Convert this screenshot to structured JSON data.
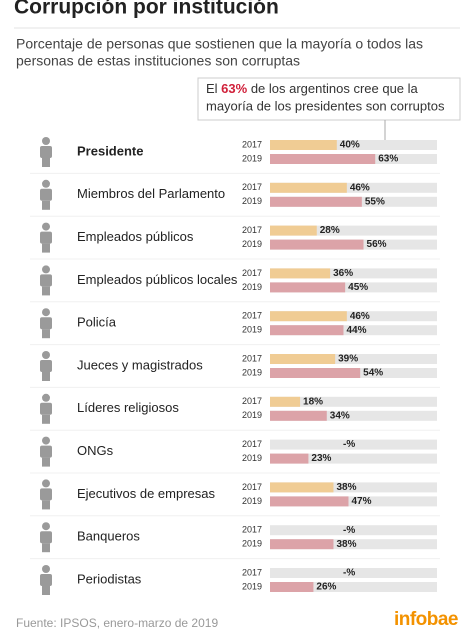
{
  "chart_data": {
    "type": "bar",
    "orientation": "horizontal",
    "title": "Corrupción por institución",
    "subtitle": [
      "Porcentaje de personas que sostienen que la mayoría o todos las",
      "personas de estas instituciones son corruptas"
    ],
    "annotation_lines": [
      [
        "El ",
        "63%",
        " de los argentinos cree que la"
      ],
      [
        "mayoría de los presidentes son corruptos"
      ]
    ],
    "categories": [
      "Presidente",
      "Miembros del Parlamento",
      "Empleados públicos",
      "Empleados públicos locales",
      "Policía",
      "Jueces y magistrados",
      "Líderes religiosos",
      "ONGs",
      "Ejecutivos de empresas",
      "Banqueros",
      "Periodistas"
    ],
    "series": [
      {
        "name": "2017",
        "color": "#f0cc94",
        "values": [
          40,
          46,
          28,
          36,
          46,
          39,
          18,
          null,
          38,
          null,
          null
        ],
        "value_labels": [
          "40%",
          "46%",
          "28%",
          "36%",
          "46%",
          "39%",
          "18%",
          "-%",
          "38%",
          "-%",
          "-%"
        ]
      },
      {
        "name": "2019",
        "color": "#dca3a8",
        "values": [
          63,
          55,
          56,
          45,
          44,
          54,
          34,
          23,
          47,
          38,
          26
        ],
        "value_labels": [
          "63%",
          "55%",
          "56%",
          "45%",
          "44%",
          "54%",
          "34%",
          "23%",
          "47%",
          "38%",
          "26%"
        ]
      }
    ],
    "xlim": [
      0,
      100
    ],
    "source": "Fuente: IPSOS, enero-marzo de 2019",
    "logo": "infobae"
  }
}
